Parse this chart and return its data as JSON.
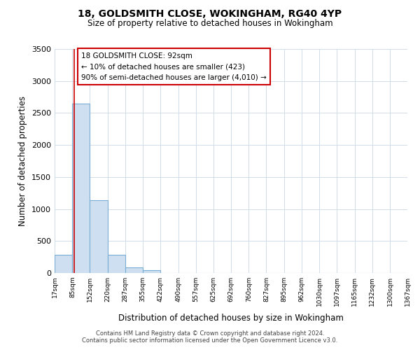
{
  "title": "18, GOLDSMITH CLOSE, WOKINGHAM, RG40 4YP",
  "subtitle": "Size of property relative to detached houses in Wokingham",
  "xlabel": "Distribution of detached houses by size in Wokingham",
  "ylabel": "Number of detached properties",
  "bar_edges": [
    17,
    85,
    152,
    220,
    287,
    355,
    422,
    490,
    557,
    625,
    692,
    760,
    827,
    895,
    962,
    1030,
    1097,
    1165,
    1232,
    1300,
    1367
  ],
  "bar_heights": [
    280,
    2650,
    1140,
    280,
    85,
    45,
    0,
    0,
    0,
    0,
    0,
    0,
    0,
    0,
    0,
    0,
    0,
    0,
    0,
    0
  ],
  "bar_color": "#cddff0",
  "bar_edge_color": "#7aadd4",
  "vline_x": 92,
  "vline_color": "#cc0000",
  "annotation_line1": "18 GOLDSMITH CLOSE: 92sqm",
  "annotation_line2": "← 10% of detached houses are smaller (423)",
  "annotation_line3": "90% of semi-detached houses are larger (4,010) →",
  "ylim": [
    0,
    3500
  ],
  "yticks": [
    0,
    500,
    1000,
    1500,
    2000,
    2500,
    3000,
    3500
  ],
  "footer_line1": "Contains HM Land Registry data © Crown copyright and database right 2024.",
  "footer_line2": "Contains public sector information licensed under the Open Government Licence v3.0.",
  "background_color": "#ffffff",
  "grid_color": "#d0dce8"
}
